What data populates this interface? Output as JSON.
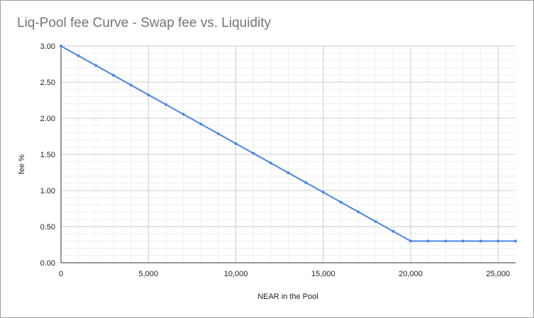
{
  "chart_data": {
    "type": "line",
    "title": "Liq-Pool fee Curve - Swap fee vs. Liquidity",
    "xlabel": "NEAR in the Pool",
    "ylabel": "fee %",
    "xlim": [
      0,
      26000
    ],
    "ylim": [
      0,
      3.0
    ],
    "x_ticks": [
      0,
      5000,
      10000,
      15000,
      20000,
      25000
    ],
    "x_tick_labels": [
      "0",
      "5,000",
      "10,000",
      "15,000",
      "20,000",
      "25,000"
    ],
    "y_ticks": [
      0,
      0.5,
      1.0,
      1.5,
      2.0,
      2.5,
      3.0
    ],
    "y_tick_labels": [
      "0.00",
      "0.50",
      "1.00",
      "1.50",
      "2.00",
      "2.50",
      "3.00"
    ],
    "grid": true,
    "legend": "none",
    "series": [
      {
        "color": "#4a86e8",
        "x": [
          0,
          1000,
          2000,
          3000,
          4000,
          5000,
          6000,
          7000,
          8000,
          9000,
          10000,
          11000,
          12000,
          13000,
          14000,
          15000,
          16000,
          17000,
          18000,
          19000,
          20000,
          21000,
          22000,
          23000,
          24000,
          25000,
          26000
        ],
        "y": [
          3.0,
          2.865,
          2.73,
          2.595,
          2.46,
          2.325,
          2.19,
          2.055,
          1.92,
          1.785,
          1.65,
          1.515,
          1.38,
          1.245,
          1.11,
          0.975,
          0.84,
          0.705,
          0.57,
          0.435,
          0.3,
          0.3,
          0.3,
          0.3,
          0.3,
          0.3,
          0.3
        ]
      }
    ]
  }
}
